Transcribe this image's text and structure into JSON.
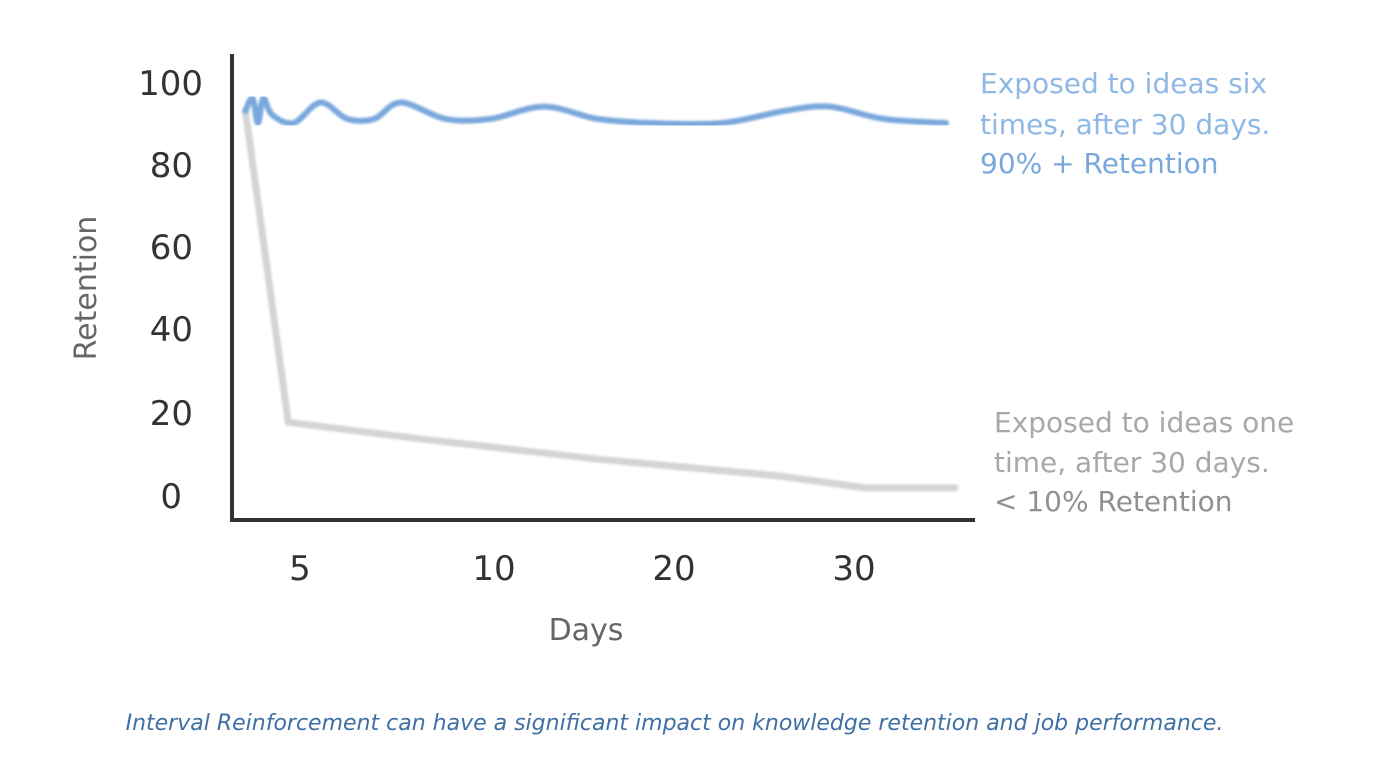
{
  "chart_data": {
    "type": "line",
    "ylabel": "Retention",
    "xlabel": "Days",
    "y_ticks": [
      "0",
      "20",
      "40",
      "60",
      "80",
      "100"
    ],
    "x_ticks": [
      "5",
      "10",
      "20",
      "30"
    ],
    "colors": {
      "six_times": "#7aa8dc",
      "one_time": "#d4d4d4",
      "axis": "#333333",
      "caption": "#3f6fa3"
    },
    "series": [
      {
        "key": "six_times",
        "points": [
          [
            0.3,
            93
          ],
          [
            0.7,
            96
          ],
          [
            1.0,
            90
          ],
          [
            1.3,
            96
          ],
          [
            1.8,
            92
          ],
          [
            3.0,
            90
          ],
          [
            4.5,
            95
          ],
          [
            6.0,
            91
          ],
          [
            7.5,
            91
          ],
          [
            9.0,
            95
          ],
          [
            11.5,
            91
          ],
          [
            14.0,
            91
          ],
          [
            17.0,
            94
          ],
          [
            20.0,
            91
          ],
          [
            23.0,
            90
          ],
          [
            27.0,
            90
          ],
          [
            30.5,
            93
          ],
          [
            33.0,
            94
          ],
          [
            36.0,
            91
          ],
          [
            39.5,
            90
          ]
        ]
      },
      {
        "key": "one_time",
        "points": [
          [
            0.3,
            93
          ],
          [
            2.7,
            17
          ],
          [
            10.0,
            13
          ],
          [
            20.0,
            8
          ],
          [
            30.0,
            4
          ],
          [
            35.0,
            1
          ],
          [
            40.0,
            1
          ]
        ]
      }
    ],
    "annotations": {
      "six_times": {
        "line1": "Exposed to ideas six",
        "line2": "times, after 30 days.",
        "line3": "90% + Retention"
      },
      "one_time": {
        "line1": "Exposed to ideas one",
        "line2": "time, after 30 days.",
        "line3": "< 10% Retention"
      }
    }
  },
  "caption": "Interval Reinforcement can have a significant impact on knowledge retention and job performance."
}
